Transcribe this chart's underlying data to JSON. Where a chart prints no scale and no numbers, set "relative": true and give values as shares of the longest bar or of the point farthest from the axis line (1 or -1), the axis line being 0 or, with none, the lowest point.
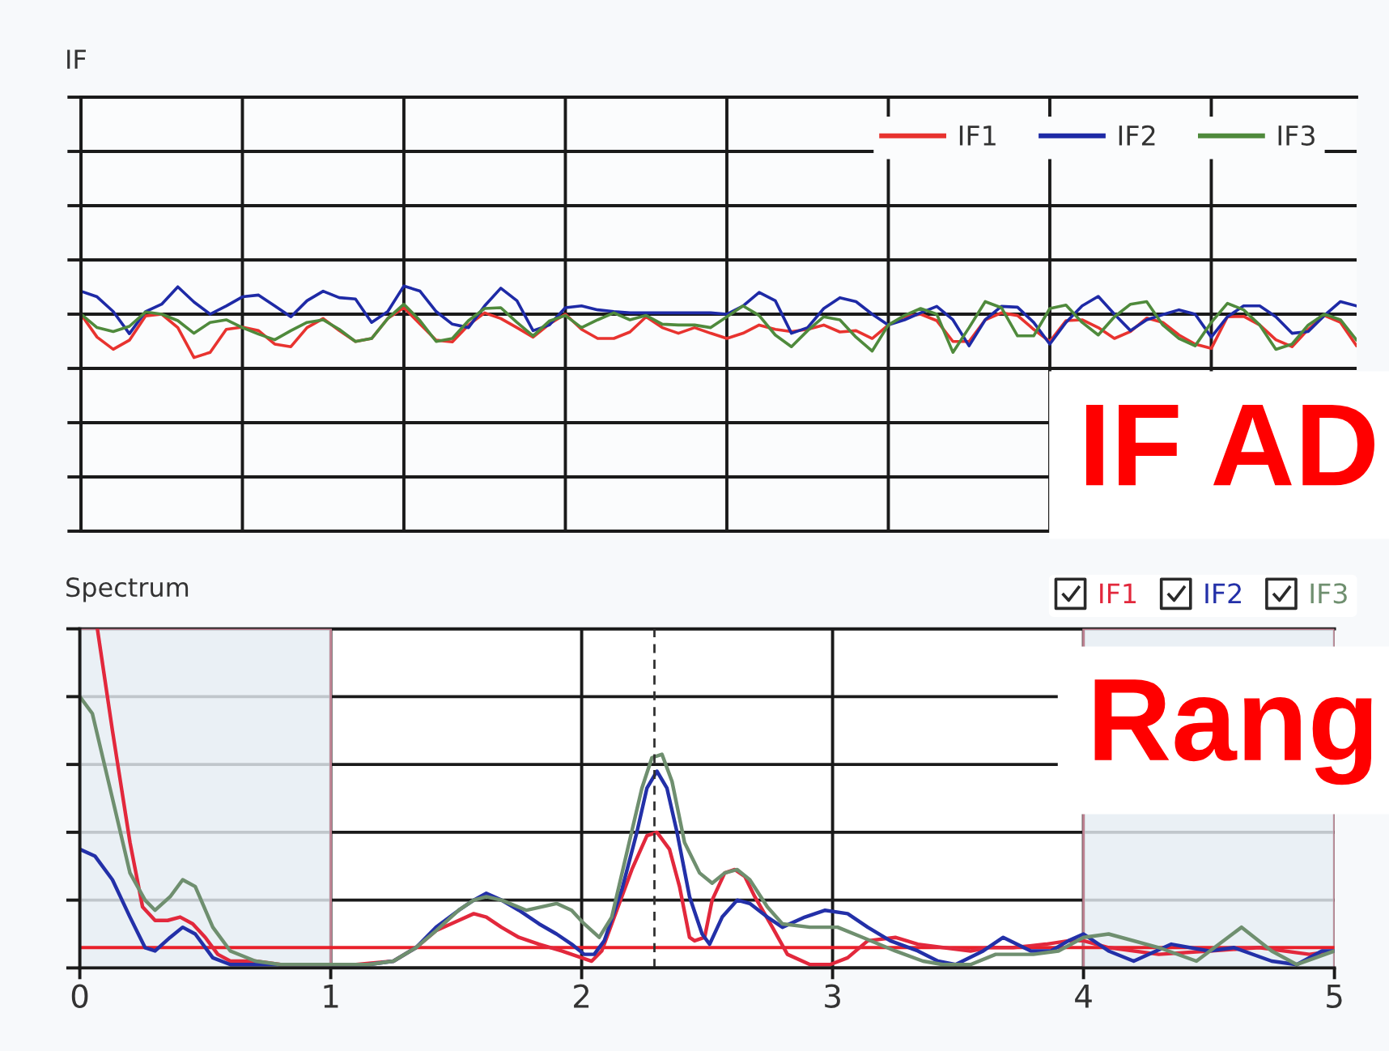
{
  "chart_data": [
    {
      "type": "line",
      "title": "IF",
      "relative": true,
      "grid": true,
      "legend": "top right",
      "tick_labels": false,
      "categories": [
        null,
        null,
        null,
        null,
        null,
        null,
        null,
        null,
        null,
        null,
        null,
        null,
        null,
        null,
        null,
        null,
        null,
        null,
        null,
        null,
        null,
        null,
        null,
        null,
        null,
        null,
        null,
        null,
        null,
        null,
        null,
        null,
        null,
        null,
        null,
        null,
        null,
        null,
        null,
        null,
        null,
        null,
        null,
        null,
        null,
        null,
        null,
        null,
        null,
        null,
        null,
        null,
        null,
        null,
        null,
        null,
        null,
        null,
        null,
        null,
        null,
        null,
        null,
        null,
        null,
        null,
        null,
        null,
        null,
        null,
        null,
        null,
        null,
        null,
        null,
        null,
        null,
        null,
        null,
        null
      ],
      "series": [
        {
          "name": "IF1",
          "color": "#e8332f",
          "values": [
            0,
            -0.53,
            -0.81,
            -0.6,
            -0.04,
            0,
            -0.31,
            -1.0,
            -0.88,
            -0.35,
            -0.3,
            -0.38,
            -0.69,
            -0.75,
            -0.31,
            -0.1,
            -0.38,
            -0.63,
            -0.56,
            -0.1,
            0.15,
            -0.23,
            -0.6,
            -0.64,
            -0.25,
            0.03,
            -0.1,
            -0.31,
            -0.53,
            -0.23,
            0,
            -0.35,
            -0.56,
            -0.56,
            -0.41,
            -0.06,
            -0.31,
            -0.44,
            -0.31,
            -0.44,
            -0.56,
            -0.44,
            -0.25,
            -0.35,
            -0.4,
            -0.35,
            -0.25,
            -0.41,
            -0.38,
            -0.56,
            -0.25,
            -0.06,
            0,
            -0.15,
            -0.63,
            -0.63,
            -0.13,
            0.03,
            -0.03,
            -0.35,
            -0.63,
            -0.15,
            -0.13,
            -0.31,
            -0.56,
            -0.4,
            -0.09,
            -0.19,
            -0.48,
            -0.69,
            -0.79,
            -0.06,
            -0.05,
            -0.25,
            -0.59,
            -0.75,
            -0.35,
            -0.03,
            -0.19,
            -0.73
          ]
        },
        {
          "name": "IF2",
          "color": "#1e2aa6",
          "values": [
            0.53,
            0.4,
            0.06,
            -0.45,
            0.06,
            0.23,
            0.63,
            0.28,
            0,
            0.19,
            0.4,
            0.44,
            0.19,
            -0.06,
            0.31,
            0.53,
            0.38,
            0.35,
            -0.19,
            0.06,
            0.65,
            0.53,
            0.06,
            -0.23,
            -0.31,
            0.19,
            0.6,
            0.31,
            -0.38,
            -0.25,
            0.15,
            0.19,
            0.1,
            0.06,
            0.03,
            0.03,
            0.03,
            0.03,
            0.03,
            0.03,
            0,
            0.19,
            0.5,
            0.31,
            -0.44,
            -0.31,
            0.13,
            0.38,
            0.29,
            0,
            -0.25,
            -0.13,
            0.03,
            0.18,
            -0.13,
            -0.73,
            -0.13,
            0.18,
            0.16,
            -0.19,
            -0.69,
            -0.19,
            0.19,
            0.41,
            0,
            -0.38,
            -0.13,
            -0.01,
            0.1,
            0,
            -0.53,
            -0.06,
            0.19,
            0.19,
            -0.06,
            -0.44,
            -0.4,
            -0.03,
            0.29,
            0.19
          ]
        },
        {
          "name": "IF3",
          "color": "#4f8a3c",
          "values": [
            0,
            -0.31,
            -0.4,
            -0.28,
            0.05,
            0,
            -0.15,
            -0.44,
            -0.19,
            -0.13,
            -0.31,
            -0.46,
            -0.59,
            -0.38,
            -0.19,
            -0.13,
            -0.35,
            -0.63,
            -0.56,
            -0.1,
            0.23,
            -0.15,
            -0.63,
            -0.56,
            -0.15,
            0.13,
            0.15,
            -0.19,
            -0.5,
            -0.16,
            -0.03,
            -0.31,
            -0.13,
            0.03,
            -0.13,
            -0.03,
            -0.23,
            -0.25,
            -0.25,
            -0.31,
            -0.06,
            0.19,
            -0.03,
            -0.48,
            -0.75,
            -0.38,
            -0.06,
            -0.13,
            -0.53,
            -0.85,
            -0.25,
            -0.03,
            0.13,
            0,
            -0.88,
            -0.31,
            0.29,
            0.15,
            -0.5,
            -0.5,
            0.13,
            0.21,
            -0.19,
            -0.48,
            -0.06,
            0.23,
            0.29,
            -0.25,
            -0.56,
            -0.73,
            -0.19,
            0.25,
            0.1,
            -0.25,
            -0.81,
            -0.69,
            -0.25,
            0,
            -0.13,
            -0.6
          ]
        }
      ],
      "annotations": [
        "IF AD"
      ]
    },
    {
      "type": "line",
      "title": "Spectrum",
      "relative": true,
      "grid": true,
      "legend": "top right",
      "tick_labels": "x",
      "xlim": [
        0,
        5
      ],
      "xticks": [
        0,
        1,
        2,
        3,
        4,
        5
      ],
      "series": [
        {
          "name": "IF1",
          "color": "#e2283c",
          "x": [
            0.07,
            0.13,
            0.2,
            0.25,
            0.3,
            0.35,
            0.4,
            0.45,
            0.5,
            0.55,
            0.6,
            0.7,
            0.8,
            0.9,
            1.0,
            1.1,
            1.25,
            1.34,
            1.42,
            1.51,
            1.57,
            1.62,
            1.68,
            1.75,
            1.83,
            1.92,
            2.0,
            2.04,
            2.08,
            2.13,
            2.2,
            2.26,
            2.3,
            2.35,
            2.39,
            2.43,
            2.45,
            2.49,
            2.52,
            2.57,
            2.61,
            2.65,
            2.69,
            2.76,
            2.82,
            2.91,
            2.99,
            3.06,
            3.14,
            3.25,
            3.34,
            3.44,
            3.55,
            3.62,
            3.72,
            3.85,
            3.94,
            4.0,
            4.1,
            4.3,
            4.5,
            4.7,
            4.9,
            5.0
          ],
          "values": [
            1.0,
            0.7,
            0.37,
            0.18,
            0.14,
            0.14,
            0.15,
            0.13,
            0.09,
            0.04,
            0.02,
            0.02,
            0.01,
            0.01,
            0.01,
            0.01,
            0.02,
            0.06,
            0.11,
            0.14,
            0.16,
            0.15,
            0.12,
            0.09,
            0.07,
            0.05,
            0.03,
            0.02,
            0.05,
            0.15,
            0.29,
            0.39,
            0.4,
            0.35,
            0.24,
            0.09,
            0.08,
            0.09,
            0.2,
            0.28,
            0.29,
            0.27,
            0.21,
            0.12,
            0.04,
            0.01,
            0.01,
            0.03,
            0.08,
            0.09,
            0.07,
            0.06,
            0.05,
            0.06,
            0.06,
            0.07,
            0.08,
            0.08,
            0.06,
            0.04,
            0.05,
            0.06,
            0.04,
            0.05
          ]
        },
        {
          "name": "IF2",
          "color": "#2330a8",
          "x": [
            0,
            0.06,
            0.13,
            0.2,
            0.26,
            0.3,
            0.36,
            0.41,
            0.46,
            0.53,
            0.6,
            0.8,
            1.0,
            1.15,
            1.25,
            1.34,
            1.42,
            1.51,
            1.57,
            1.62,
            1.68,
            1.75,
            1.83,
            1.9,
            1.96,
            2.01,
            2.05,
            2.09,
            2.16,
            2.22,
            2.26,
            2.3,
            2.34,
            2.38,
            2.43,
            2.48,
            2.51,
            2.56,
            2.62,
            2.67,
            2.74,
            2.8,
            2.89,
            2.97,
            3.06,
            3.14,
            3.23,
            3.34,
            3.42,
            3.49,
            3.6,
            3.68,
            3.79,
            3.87,
            3.94,
            4.0,
            4.1,
            4.2,
            4.35,
            4.5,
            4.6,
            4.75,
            4.85,
            4.95,
            5.0
          ],
          "values": [
            0.35,
            0.33,
            0.26,
            0.15,
            0.06,
            0.05,
            0.09,
            0.12,
            0.1,
            0.03,
            0.01,
            0.01,
            0.01,
            0.01,
            0.02,
            0.06,
            0.12,
            0.17,
            0.2,
            0.22,
            0.2,
            0.17,
            0.13,
            0.1,
            0.07,
            0.04,
            0.04,
            0.08,
            0.23,
            0.4,
            0.53,
            0.58,
            0.53,
            0.4,
            0.21,
            0.1,
            0.07,
            0.15,
            0.2,
            0.19,
            0.15,
            0.12,
            0.15,
            0.17,
            0.16,
            0.12,
            0.08,
            0.05,
            0.02,
            0.01,
            0.05,
            0.09,
            0.05,
            0.05,
            0.08,
            0.1,
            0.05,
            0.02,
            0.07,
            0.05,
            0.06,
            0.02,
            0.01,
            0.05,
            0.05
          ]
        },
        {
          "name": "IF3",
          "color": "#6f8f6f",
          "x": [
            0,
            0.05,
            0.13,
            0.2,
            0.26,
            0.3,
            0.36,
            0.41,
            0.46,
            0.53,
            0.6,
            0.7,
            0.8,
            1.0,
            1.15,
            1.25,
            1.34,
            1.42,
            1.51,
            1.57,
            1.62,
            1.68,
            1.78,
            1.9,
            1.96,
            2.01,
            2.07,
            2.12,
            2.18,
            2.24,
            2.28,
            2.32,
            2.36,
            2.41,
            2.47,
            2.52,
            2.57,
            2.62,
            2.67,
            2.74,
            2.8,
            2.91,
            3.02,
            3.12,
            3.25,
            3.36,
            3.44,
            3.55,
            3.65,
            3.8,
            3.9,
            4.0,
            4.1,
            4.3,
            4.45,
            4.63,
            4.75,
            4.85,
            5.0
          ],
          "values": [
            0.8,
            0.75,
            0.5,
            0.28,
            0.2,
            0.17,
            0.21,
            0.26,
            0.24,
            0.12,
            0.05,
            0.02,
            0.01,
            0.01,
            0.01,
            0.02,
            0.06,
            0.11,
            0.17,
            0.2,
            0.21,
            0.2,
            0.17,
            0.19,
            0.17,
            0.13,
            0.09,
            0.15,
            0.34,
            0.53,
            0.62,
            0.63,
            0.55,
            0.37,
            0.28,
            0.25,
            0.28,
            0.29,
            0.26,
            0.18,
            0.13,
            0.12,
            0.12,
            0.09,
            0.05,
            0.02,
            0.01,
            0.01,
            0.04,
            0.04,
            0.05,
            0.09,
            0.1,
            0.06,
            0.02,
            0.12,
            0.05,
            0.01,
            0.05
          ]
        }
      ],
      "bands": [
        {
          "axis": "x",
          "from": 0,
          "to": 1,
          "color": "#e6edf3"
        },
        {
          "axis": "x",
          "from": 4,
          "to": 5,
          "color": "#e6edf3"
        }
      ],
      "ref_lines": [
        {
          "axis": "y",
          "value": 0.06,
          "color": "#e8202a"
        },
        {
          "axis": "x",
          "value": 2.29,
          "color": "#303030",
          "line_style": "dashed"
        }
      ],
      "annotations": [
        "Rang"
      ]
    }
  ]
}
